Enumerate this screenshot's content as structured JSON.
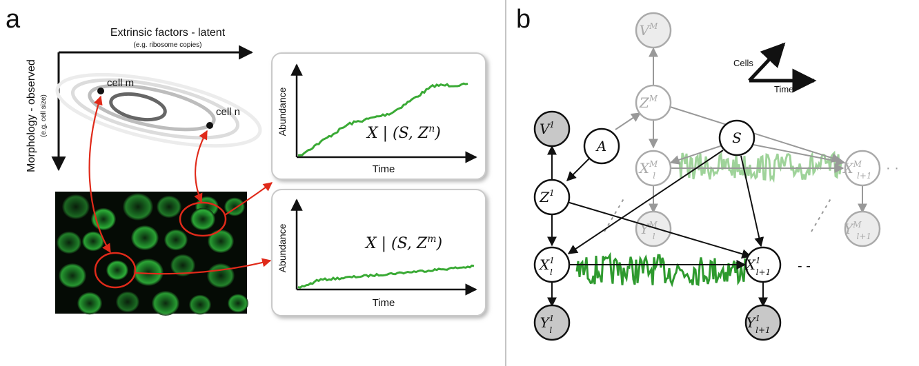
{
  "panel_a": {
    "label": "a",
    "x_axis_label": "Extrinsic factors - latent",
    "x_axis_note": "(e.g. ribosome copies)",
    "y_axis_label": "Morphology - observed",
    "y_axis_note": "(e.g. cell size)",
    "cell_m_label": "cell m",
    "cell_n_label": "cell n",
    "plot_top": {
      "ylabel": "Abundance",
      "xlabel": "Time",
      "formula": "X | (S, Z",
      "formula_sup": "n",
      "formula_end": ")"
    },
    "plot_bottom": {
      "ylabel": "Abundance",
      "xlabel": "Time",
      "formula": "X | (S, Z",
      "formula_sup": "m",
      "formula_end": ")"
    },
    "colors": {
      "arrow": "#e02a1a",
      "trace": "#3aaa35",
      "cells": "#1e8a2a"
    }
  },
  "panel_b": {
    "label": "b",
    "axes": {
      "cells": "Cells",
      "time": "Time"
    },
    "nodes": {
      "V1": {
        "base": "V",
        "sup": "1"
      },
      "A": {
        "base": "A"
      },
      "Z1": {
        "base": "Z",
        "sup": "1"
      },
      "X1l": {
        "base": "X",
        "sup": "1",
        "sub": "l"
      },
      "Y1l": {
        "base": "Y",
        "sup": "1",
        "sub": "l"
      },
      "X1l1": {
        "base": "X",
        "sup": "1",
        "sub": "l+1"
      },
      "Y1l1": {
        "base": "Y",
        "sup": "1",
        "sub": "l+1"
      },
      "S": {
        "base": "S"
      },
      "VM": {
        "base": "V",
        "sup": "M"
      },
      "ZM": {
        "base": "Z",
        "sup": "M"
      },
      "XMl": {
        "base": "X",
        "sup": "M",
        "sub": "l"
      },
      "YMl": {
        "base": "Y",
        "sup": "M",
        "sub": "l"
      },
      "XMl1": {
        "base": "X",
        "sup": "M",
        "sub": "l+1"
      },
      "YMl1": {
        "base": "Y",
        "sup": "M",
        "sub": "l+1"
      }
    },
    "colors": {
      "observed_fill": "#c8c8c8",
      "latent_fill": "#ffffff",
      "faded": "#aaaaaa",
      "trace": "#2e9a2e",
      "trace_faded": "#9fd39a"
    }
  }
}
